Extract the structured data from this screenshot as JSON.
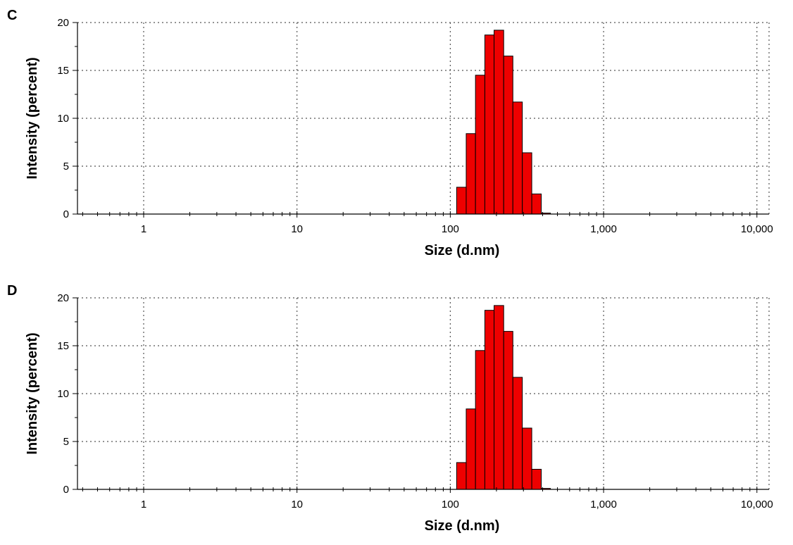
{
  "chart_data": [
    {
      "panel_label": "C",
      "type": "bar",
      "xlabel": "Size (d.nm)",
      "ylabel": "Intensity (percent)",
      "x_scale": "log",
      "xlim": [
        0.37,
        12000
      ],
      "ylim": [
        0,
        20
      ],
      "x_ticks": [
        1,
        10,
        100,
        1000,
        10000
      ],
      "x_tick_labels": [
        "1",
        "10",
        "100",
        "1,000",
        "10,000"
      ],
      "y_ticks": [
        0,
        5,
        10,
        15,
        20
      ],
      "y_tick_labels": [
        "0",
        "5",
        "10",
        "15",
        "20"
      ],
      "grid": true,
      "bar_color": "#ee0000",
      "bins": [
        {
          "x0": 110,
          "x1": 127,
          "value": 2.8
        },
        {
          "x0": 127,
          "x1": 146,
          "value": 8.4
        },
        {
          "x0": 146,
          "x1": 168,
          "value": 14.5
        },
        {
          "x0": 168,
          "x1": 193,
          "value": 18.7
        },
        {
          "x0": 193,
          "x1": 223,
          "value": 19.2
        },
        {
          "x0": 223,
          "x1": 256,
          "value": 16.5
        },
        {
          "x0": 256,
          "x1": 295,
          "value": 11.7
        },
        {
          "x0": 295,
          "x1": 340,
          "value": 6.4
        },
        {
          "x0": 340,
          "x1": 392,
          "value": 2.1
        },
        {
          "x0": 392,
          "x1": 450,
          "value": 0.1
        }
      ]
    },
    {
      "panel_label": "D",
      "type": "bar",
      "xlabel": "Size (d.nm)",
      "ylabel": "Intensity (percent)",
      "x_scale": "log",
      "xlim": [
        0.37,
        12000
      ],
      "ylim": [
        0,
        20
      ],
      "x_ticks": [
        1,
        10,
        100,
        1000,
        10000
      ],
      "x_tick_labels": [
        "1",
        "10",
        "100",
        "1,000",
        "10,000"
      ],
      "y_ticks": [
        0,
        5,
        10,
        15,
        20
      ],
      "y_tick_labels": [
        "0",
        "5",
        "10",
        "15",
        "20"
      ],
      "grid": true,
      "bar_color": "#ee0000",
      "bins": [
        {
          "x0": 110,
          "x1": 127,
          "value": 2.8
        },
        {
          "x0": 127,
          "x1": 146,
          "value": 8.4
        },
        {
          "x0": 146,
          "x1": 168,
          "value": 14.5
        },
        {
          "x0": 168,
          "x1": 193,
          "value": 18.7
        },
        {
          "x0": 193,
          "x1": 223,
          "value": 19.2
        },
        {
          "x0": 223,
          "x1": 256,
          "value": 16.5
        },
        {
          "x0": 256,
          "x1": 295,
          "value": 11.7
        },
        {
          "x0": 295,
          "x1": 340,
          "value": 6.4
        },
        {
          "x0": 340,
          "x1": 392,
          "value": 2.1
        },
        {
          "x0": 392,
          "x1": 450,
          "value": 0.1
        }
      ]
    }
  ]
}
